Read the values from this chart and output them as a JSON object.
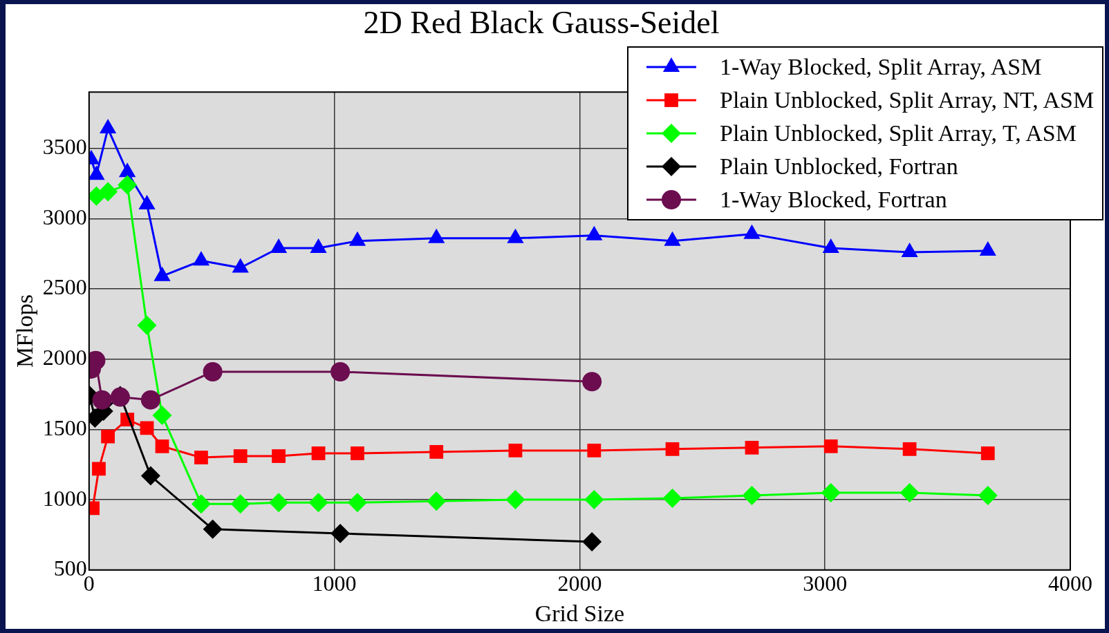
{
  "chart_data": {
    "type": "line",
    "title": "2D Red Black Gauss-Seidel",
    "xlabel": "Grid Size",
    "ylabel": "MFlops",
    "xlim": [
      0,
      4000
    ],
    "xticks": [
      0,
      1000,
      2000,
      3000,
      4000
    ],
    "ylim": [
      500,
      3900
    ],
    "yticks": [
      500,
      1000,
      1500,
      2000,
      2500,
      3000,
      3500
    ],
    "grid": true,
    "legend": "top right",
    "line_style": "solid",
    "series": [
      {
        "name": "1-Way Blocked, Split Array, ASM",
        "color": "#0000ff",
        "marker": "triangle",
        "x": [
          9,
          30,
          77,
          156,
          236,
          298,
          457,
          617,
          773,
          935,
          1094,
          1416,
          1738,
          2059,
          2378,
          2702,
          3024,
          3345,
          3664
        ],
        "values": [
          3420,
          3310,
          3640,
          3330,
          3100,
          2590,
          2700,
          2650,
          2790,
          2790,
          2840,
          2860,
          2860,
          2880,
          2840,
          2890,
          2790,
          2760,
          2770
        ]
      },
      {
        "name": "Plain Unblocked, Split Array, NT, ASM",
        "color": "#ff0000",
        "marker": "square",
        "x": [
          15,
          40,
          77,
          156,
          236,
          298,
          457,
          617,
          773,
          935,
          1094,
          1416,
          1738,
          2059,
          2378,
          2702,
          3024,
          3345,
          3664
        ],
        "values": [
          940,
          1220,
          1450,
          1570,
          1510,
          1380,
          1300,
          1310,
          1310,
          1330,
          1330,
          1340,
          1350,
          1350,
          1360,
          1370,
          1380,
          1360,
          1330
        ]
      },
      {
        "name": "Plain Unblocked, Split Array, T, ASM",
        "color": "#00ff00",
        "marker": "diamond",
        "x": [
          30,
          77,
          156,
          236,
          298,
          457,
          617,
          773,
          935,
          1094,
          1416,
          1738,
          2059,
          2378,
          2702,
          3024,
          3345,
          3664
        ],
        "values": [
          3160,
          3190,
          3240,
          2240,
          1600,
          970,
          970,
          980,
          980,
          980,
          990,
          1000,
          1000,
          1010,
          1030,
          1050,
          1050,
          1030
        ]
      },
      {
        "name": "Plain Unblocked, Fortran",
        "color": "#000000",
        "marker": "diamond",
        "x": [
          3,
          24,
          59,
          127,
          251,
          504,
          1024,
          2050
        ],
        "values": [
          1740,
          1580,
          1630,
          1740,
          1170,
          790,
          760,
          700
        ]
      },
      {
        "name": "1-Way Blocked, Fortran",
        "color": "#6b0d4f",
        "marker": "circle",
        "x": [
          9,
          27,
          53,
          127,
          251,
          504,
          1024,
          2050
        ],
        "values": [
          1930,
          1990,
          1710,
          1730,
          1710,
          1910,
          1910,
          1840
        ]
      }
    ]
  }
}
